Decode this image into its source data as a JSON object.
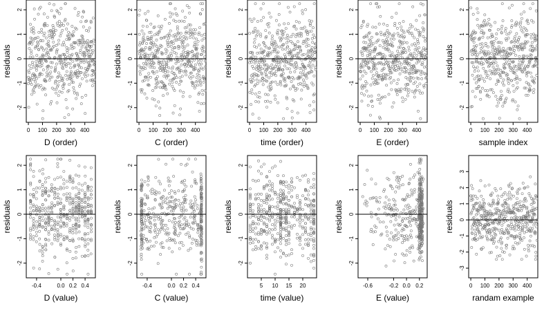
{
  "chart_data": [
    {
      "type": "scatter",
      "xlabel": "D (order)",
      "ylabel": "residuals",
      "xlim": [
        -15,
        475
      ],
      "ylim": [
        -2.6,
        2.4
      ],
      "xticks": [
        "0",
        "100",
        "200",
        "300",
        "400"
      ],
      "yticks": [
        "-2",
        "-1",
        "0",
        "1",
        "2"
      ],
      "reference_line_y": 0,
      "points": {
        "n": 480,
        "x_range": [
          0,
          470
        ],
        "pattern": "uniform",
        "spread": 0.9,
        "seed": 11
      }
    },
    {
      "type": "scatter",
      "xlabel": "C (order)",
      "ylabel": "residuals",
      "xlim": [
        -15,
        475
      ],
      "ylim": [
        -2.6,
        2.4
      ],
      "xticks": [
        "0",
        "100",
        "200",
        "300",
        "400"
      ],
      "yticks": [
        "-2",
        "-1",
        "0",
        "1",
        "2"
      ],
      "reference_line_y": 0,
      "points": {
        "n": 480,
        "x_range": [
          0,
          470
        ],
        "pattern": "uniform",
        "spread": 0.9,
        "seed": 23
      }
    },
    {
      "type": "scatter",
      "xlabel": "time (order)",
      "ylabel": "residuals",
      "xlim": [
        -15,
        475
      ],
      "ylim": [
        -2.6,
        2.4
      ],
      "xticks": [
        "0",
        "100",
        "200",
        "300",
        "400"
      ],
      "yticks": [
        "-2",
        "-1",
        "0",
        "1",
        "2"
      ],
      "reference_line_y": 0,
      "points": {
        "n": 480,
        "x_range": [
          0,
          470
        ],
        "pattern": "uniform",
        "spread": 0.9,
        "seed": 37
      }
    },
    {
      "type": "scatter",
      "xlabel": "E (order)",
      "ylabel": "residuals",
      "xlim": [
        -15,
        475
      ],
      "ylim": [
        -2.6,
        2.4
      ],
      "xticks": [
        "0",
        "100",
        "200",
        "300",
        "400"
      ],
      "yticks": [
        "-2",
        "-1",
        "0",
        "1",
        "2"
      ],
      "reference_line_y": 0,
      "points": {
        "n": 480,
        "x_range": [
          0,
          470
        ],
        "pattern": "uniform",
        "spread": 0.9,
        "seed": 41
      }
    },
    {
      "type": "scatter",
      "xlabel": "sample index",
      "ylabel": "residuals",
      "xlim": [
        -15,
        475
      ],
      "ylim": [
        -2.6,
        2.4
      ],
      "xticks": [
        "0",
        "100",
        "200",
        "300",
        "400"
      ],
      "yticks": [
        "-2",
        "-1",
        "0",
        "1",
        "2"
      ],
      "reference_line_y": 0,
      "points": {
        "n": 480,
        "x_range": [
          0,
          470
        ],
        "pattern": "uniform",
        "spread": 0.9,
        "seed": 53
      }
    },
    {
      "type": "scatter",
      "xlabel": "D (value)",
      "ylabel": "residuals",
      "xlim": [
        -0.57,
        0.57
      ],
      "ylim": [
        -2.6,
        2.4
      ],
      "xticks": [
        "-0.4",
        "0.0",
        "0.2",
        "0.4"
      ],
      "xtick_values": [
        -0.4,
        0.0,
        0.2,
        0.4
      ],
      "yticks": [
        "-2",
        "-1",
        "0",
        "1",
        "2"
      ],
      "reference_line_y": 0,
      "points": {
        "n": 480,
        "pattern": "levels",
        "levels": [
          -0.5,
          -0.45,
          -0.4,
          -0.35,
          -0.3,
          -0.25,
          -0.2,
          -0.15,
          -0.1,
          -0.05,
          0,
          0.05,
          0.1,
          0.15,
          0.2,
          0.25,
          0.3,
          0.35,
          0.4,
          0.45,
          0.5
        ],
        "jitter": 0.006,
        "spread": 0.9,
        "seed": 61
      }
    },
    {
      "type": "scatter",
      "xlabel": "C (value)",
      "ylabel": "residuals",
      "xlim": [
        -0.57,
        0.57
      ],
      "ylim": [
        -2.6,
        2.4
      ],
      "xticks": [
        "-0.4",
        "0.0",
        "0.2",
        "0.4"
      ],
      "xtick_values": [
        -0.4,
        0.0,
        0.2,
        0.4
      ],
      "yticks": [
        "-2",
        "-1",
        "0",
        "1",
        "2"
      ],
      "reference_line_y": 0,
      "points": {
        "n": 480,
        "pattern": "edges",
        "range": [
          -0.5,
          0.5
        ],
        "edge_share": 0.22,
        "spread": 0.9,
        "seed": 71
      }
    },
    {
      "type": "scatter",
      "xlabel": "time (value)",
      "ylabel": "residuals",
      "xlim": [
        0,
        25
      ],
      "ylim": [
        -2.6,
        2.4
      ],
      "xticks": [
        "5",
        "10",
        "15",
        "20"
      ],
      "xtick_values": [
        5,
        10,
        15,
        20
      ],
      "yticks": [
        "-2",
        "-1",
        "0",
        "1",
        "2"
      ],
      "reference_line_y": 0,
      "points": {
        "n": 480,
        "pattern": "integers",
        "range": [
          1,
          24
        ],
        "dense": [
          12,
          24
        ],
        "dense_share": 0.14,
        "spread": 0.9,
        "seed": 83
      }
    },
    {
      "type": "scatter",
      "xlabel": "E (value)",
      "ylabel": "residuals",
      "xlim": [
        -0.75,
        0.32
      ],
      "ylim": [
        -2.6,
        2.4
      ],
      "xticks": [
        "-0.6",
        "-0.2",
        "0.0",
        "0.2"
      ],
      "xtick_values": [
        -0.6,
        -0.2,
        0.0,
        0.2
      ],
      "yticks": [
        "-2",
        "-1",
        "0",
        "1",
        "2"
      ],
      "reference_line_y": 0,
      "points": {
        "n": 480,
        "pattern": "skewed",
        "range": [
          -0.7,
          0.26
        ],
        "dense": [
          0.2,
          0.22,
          0.24
        ],
        "dense_share": 0.5,
        "spread": 0.9,
        "seed": 97
      }
    },
    {
      "type": "scatter",
      "xlabel": "randam example",
      "ylabel": "residuals",
      "xlim": [
        -15,
        475
      ],
      "ylim": [
        -3.6,
        4.0
      ],
      "xticks": [
        "0",
        "100",
        "200",
        "300",
        "400"
      ],
      "yticks": [
        "-3",
        "-2",
        "-1",
        "0",
        "1",
        "2",
        "3"
      ],
      "reference_line_y": 0,
      "points": {
        "n": 480,
        "x_range": [
          0,
          470
        ],
        "pattern": "uniform",
        "spread": 1.0,
        "seed": 103
      }
    }
  ]
}
